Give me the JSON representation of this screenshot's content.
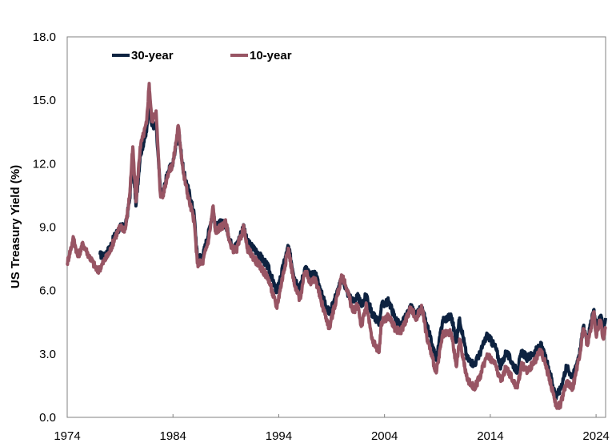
{
  "chart_data": {
    "type": "line",
    "title": "",
    "xlabel": "",
    "ylabel": "US Treasury Yield (%)",
    "xlim": [
      1974,
      2024.9
    ],
    "ylim": [
      0,
      18
    ],
    "x_ticks": [
      1974,
      1984,
      1994,
      2004,
      2014,
      2024
    ],
    "x_tick_labels": [
      "1974",
      "1984",
      "1994",
      "2004",
      "2014",
      "2024"
    ],
    "y_ticks": [
      0,
      3,
      6,
      9,
      12,
      15,
      18
    ],
    "y_tick_labels": [
      "0.0",
      "3.0",
      "6.0",
      "9.0",
      "12.0",
      "15.0",
      "18.0"
    ],
    "grid": false,
    "legend_position": "top-left",
    "series": [
      {
        "name": "30-year",
        "color": "#0d2240",
        "points": [
          [
            1977.1,
            7.7
          ],
          [
            1977.5,
            7.6
          ],
          [
            1978,
            8.0
          ],
          [
            1978.5,
            8.6
          ],
          [
            1979,
            9.0
          ],
          [
            1979.5,
            9.0
          ],
          [
            1979.9,
            10.3
          ],
          [
            1980.2,
            12.3
          ],
          [
            1980.5,
            10.0
          ],
          [
            1980.9,
            12.4
          ],
          [
            1981.5,
            13.5
          ],
          [
            1981.75,
            14.9
          ],
          [
            1982,
            13.8
          ],
          [
            1982.4,
            13.8
          ],
          [
            1982.8,
            10.8
          ],
          [
            1983,
            10.5
          ],
          [
            1983.5,
            11.6
          ],
          [
            1984,
            12.0
          ],
          [
            1984.5,
            13.6
          ],
          [
            1985,
            11.6
          ],
          [
            1985.5,
            10.7
          ],
          [
            1986,
            9.6
          ],
          [
            1986.3,
            7.6
          ],
          [
            1986.8,
            7.6
          ],
          [
            1987.4,
            8.8
          ],
          [
            1987.8,
            9.9
          ],
          [
            1988,
            9.0
          ],
          [
            1988.5,
            9.2
          ],
          [
            1989,
            9.1
          ],
          [
            1989.5,
            8.2
          ],
          [
            1990,
            8.1
          ],
          [
            1990.7,
            9.1
          ],
          [
            1991,
            8.3
          ],
          [
            1992,
            7.8
          ],
          [
            1993,
            7.1
          ],
          [
            1993.8,
            5.9
          ],
          [
            1994.9,
            8.1
          ],
          [
            1995.5,
            6.6
          ],
          [
            1996,
            6.1
          ],
          [
            1996.5,
            7.1
          ],
          [
            1997,
            6.7
          ],
          [
            1997.5,
            6.8
          ],
          [
            1998,
            5.9
          ],
          [
            1998.8,
            4.9
          ],
          [
            1999,
            5.2
          ],
          [
            2000,
            6.6
          ],
          [
            2000.5,
            5.9
          ],
          [
            2001,
            5.5
          ],
          [
            2001.5,
            5.7
          ],
          [
            2001.8,
            5.3
          ],
          [
            2002.3,
            5.8
          ],
          [
            2002.8,
            4.9
          ],
          [
            2003.5,
            4.5
          ],
          [
            2003.7,
            5.3
          ],
          [
            2004.4,
            5.5
          ],
          [
            2005,
            4.7
          ],
          [
            2005.5,
            4.3
          ],
          [
            2006.5,
            5.2
          ],
          [
            2007,
            4.8
          ],
          [
            2007.5,
            5.2
          ],
          [
            2008,
            4.4
          ],
          [
            2008.9,
            2.7
          ],
          [
            2009.5,
            4.6
          ],
          [
            2010.3,
            4.8
          ],
          [
            2010.8,
            3.6
          ],
          [
            2011.1,
            4.7
          ],
          [
            2011.8,
            2.8
          ],
          [
            2012.5,
            2.5
          ],
          [
            2013,
            3.0
          ],
          [
            2013.7,
            3.9
          ],
          [
            2014.5,
            3.3
          ],
          [
            2015,
            2.4
          ],
          [
            2015.5,
            3.1
          ],
          [
            2016.5,
            2.2
          ],
          [
            2017,
            3.1
          ],
          [
            2017.5,
            2.8
          ],
          [
            2018,
            3.0
          ],
          [
            2018.8,
            3.4
          ],
          [
            2019.5,
            2.4
          ],
          [
            2020.2,
            1.0
          ],
          [
            2020.6,
            1.3
          ],
          [
            2021.2,
            2.4
          ],
          [
            2021.8,
            1.9
          ],
          [
            2022.5,
            3.2
          ],
          [
            2022.8,
            4.3
          ],
          [
            2023.2,
            3.7
          ],
          [
            2023.8,
            5.1
          ],
          [
            2024,
            4.2
          ],
          [
            2024.4,
            4.8
          ],
          [
            2024.7,
            4.2
          ],
          [
            2024.9,
            4.7
          ]
        ]
      },
      {
        "name": "10-year",
        "color": "#985564",
        "points": [
          [
            1974,
            7.3
          ],
          [
            1974.6,
            8.5
          ],
          [
            1975,
            7.6
          ],
          [
            1975.5,
            8.2
          ],
          [
            1976,
            7.7
          ],
          [
            1976.9,
            6.9
          ],
          [
            1977.5,
            7.4
          ],
          [
            1978,
            7.8
          ],
          [
            1978.5,
            8.5
          ],
          [
            1979,
            9.0
          ],
          [
            1979.5,
            8.9
          ],
          [
            1979.9,
            10.5
          ],
          [
            1980.2,
            12.8
          ],
          [
            1980.5,
            10.2
          ],
          [
            1980.9,
            12.8
          ],
          [
            1981.5,
            13.9
          ],
          [
            1981.75,
            15.8
          ],
          [
            1982,
            14.0
          ],
          [
            1982.4,
            14.5
          ],
          [
            1982.8,
            10.6
          ],
          [
            1983,
            10.4
          ],
          [
            1983.5,
            11.5
          ],
          [
            1984,
            12.0
          ],
          [
            1984.5,
            13.8
          ],
          [
            1985,
            11.5
          ],
          [
            1985.5,
            10.3
          ],
          [
            1986,
            9.3
          ],
          [
            1986.3,
            7.3
          ],
          [
            1986.8,
            7.3
          ],
          [
            1987.4,
            8.5
          ],
          [
            1987.8,
            10.0
          ],
          [
            1988,
            8.8
          ],
          [
            1988.5,
            9.0
          ],
          [
            1989,
            9.2
          ],
          [
            1989.5,
            8.0
          ],
          [
            1990,
            7.9
          ],
          [
            1990.7,
            9.0
          ],
          [
            1991,
            8.0
          ],
          [
            1992,
            7.3
          ],
          [
            1993,
            6.6
          ],
          [
            1993.8,
            5.2
          ],
          [
            1994.9,
            8.0
          ],
          [
            1995.5,
            6.2
          ],
          [
            1996,
            5.6
          ],
          [
            1996.5,
            6.9
          ],
          [
            1997,
            6.4
          ],
          [
            1997.5,
            6.5
          ],
          [
            1998,
            5.5
          ],
          [
            1998.8,
            4.2
          ],
          [
            1999,
            4.7
          ],
          [
            2000,
            6.7
          ],
          [
            2000.5,
            6.0
          ],
          [
            2001,
            5.0
          ],
          [
            2001.5,
            5.3
          ],
          [
            2001.8,
            4.3
          ],
          [
            2002.3,
            5.3
          ],
          [
            2002.8,
            3.7
          ],
          [
            2003.5,
            3.1
          ],
          [
            2003.7,
            4.5
          ],
          [
            2004.4,
            4.8
          ],
          [
            2005,
            4.2
          ],
          [
            2005.5,
            4.0
          ],
          [
            2006.5,
            5.2
          ],
          [
            2007,
            4.6
          ],
          [
            2007.5,
            5.3
          ],
          [
            2008,
            3.8
          ],
          [
            2008.9,
            2.1
          ],
          [
            2009.5,
            3.9
          ],
          [
            2010.3,
            4.0
          ],
          [
            2010.8,
            2.4
          ],
          [
            2011.1,
            3.7
          ],
          [
            2011.8,
            1.8
          ],
          [
            2012.5,
            1.4
          ],
          [
            2013,
            1.9
          ],
          [
            2013.7,
            3.0
          ],
          [
            2014.5,
            2.5
          ],
          [
            2015,
            1.7
          ],
          [
            2015.5,
            2.4
          ],
          [
            2016.5,
            1.4
          ],
          [
            2017,
            2.5
          ],
          [
            2017.5,
            2.2
          ],
          [
            2018,
            2.5
          ],
          [
            2018.8,
            3.2
          ],
          [
            2019.5,
            2.0
          ],
          [
            2020.2,
            0.6
          ],
          [
            2020.6,
            0.55
          ],
          [
            2021.2,
            1.7
          ],
          [
            2021.8,
            1.4
          ],
          [
            2022.5,
            3.1
          ],
          [
            2022.8,
            4.2
          ],
          [
            2023.2,
            3.4
          ],
          [
            2023.8,
            5.0
          ],
          [
            2024,
            3.9
          ],
          [
            2024.4,
            4.6
          ],
          [
            2024.7,
            3.7
          ],
          [
            2024.9,
            4.2
          ]
        ]
      }
    ]
  }
}
